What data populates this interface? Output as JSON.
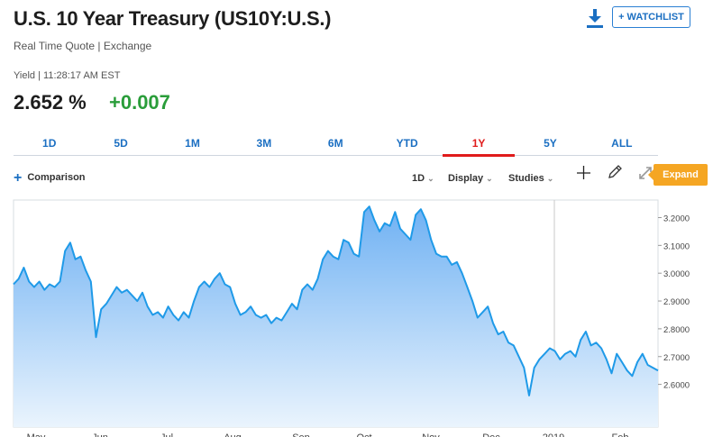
{
  "header": {
    "title": "U.S. 10 Year Treasury (US10Y:U.S.)",
    "subtitle": "Real Time Quote | Exchange",
    "yield_label": "Yield | 11:28:17 AM EST",
    "price": "2.652 %",
    "change": "+0.007",
    "watchlist_label": "+ WATCHLIST"
  },
  "range_tabs": [
    {
      "label": "1D"
    },
    {
      "label": "5D"
    },
    {
      "label": "1M"
    },
    {
      "label": "3M"
    },
    {
      "label": "6M"
    },
    {
      "label": "YTD"
    },
    {
      "label": "1Y",
      "active": true
    },
    {
      "label": "5Y"
    },
    {
      "label": "ALL"
    }
  ],
  "toolbar": {
    "comparison_label": "Comparison",
    "interval_label": "1D",
    "display_label": "Display",
    "studies_label": "Studies",
    "expand_label": "Expand"
  },
  "colors": {
    "accent": "#1b6fc2",
    "line": "#1f9ae8",
    "fill_top": "#7ab8f5",
    "negative_tab": "#e01b1b",
    "positive": "#2a9d3a",
    "expand": "#f5a623"
  },
  "chart_data": {
    "type": "area",
    "y_ticks": [
      "3.2000",
      "3.1000",
      "3.0000",
      "2.9000",
      "2.8000",
      "2.7000",
      "2.6000"
    ],
    "x_labels": [
      "May",
      "Jun",
      "Jul",
      "Aug",
      "Sep",
      "Oct",
      "Nov",
      "Dec",
      "2019",
      "Feb"
    ],
    "ylim": [
      2.55,
      3.25
    ],
    "grid": false,
    "values": [
      2.96,
      2.98,
      3.02,
      2.97,
      2.95,
      2.97,
      2.94,
      2.96,
      2.95,
      2.97,
      3.08,
      3.11,
      3.05,
      3.06,
      3.01,
      2.97,
      2.77,
      2.87,
      2.89,
      2.92,
      2.95,
      2.93,
      2.94,
      2.92,
      2.9,
      2.93,
      2.88,
      2.85,
      2.86,
      2.84,
      2.88,
      2.85,
      2.83,
      2.86,
      2.84,
      2.9,
      2.95,
      2.97,
      2.95,
      2.98,
      3.0,
      2.96,
      2.95,
      2.89,
      2.85,
      2.86,
      2.88,
      2.85,
      2.84,
      2.85,
      2.82,
      2.84,
      2.83,
      2.86,
      2.89,
      2.87,
      2.94,
      2.96,
      2.94,
      2.98,
      3.05,
      3.08,
      3.06,
      3.05,
      3.12,
      3.11,
      3.07,
      3.06,
      3.22,
      3.24,
      3.19,
      3.15,
      3.18,
      3.17,
      3.22,
      3.16,
      3.14,
      3.12,
      3.21,
      3.23,
      3.19,
      3.12,
      3.07,
      3.06,
      3.06,
      3.03,
      3.04,
      3.0,
      2.95,
      2.9,
      2.84,
      2.86,
      2.88,
      2.82,
      2.78,
      2.79,
      2.75,
      2.74,
      2.7,
      2.66,
      2.56,
      2.66,
      2.69,
      2.71,
      2.73,
      2.72,
      2.69,
      2.71,
      2.72,
      2.7,
      2.76,
      2.79,
      2.74,
      2.75,
      2.73,
      2.69,
      2.64,
      2.71,
      2.68,
      2.65,
      2.63,
      2.68,
      2.71,
      2.67,
      2.66,
      2.65
    ]
  }
}
